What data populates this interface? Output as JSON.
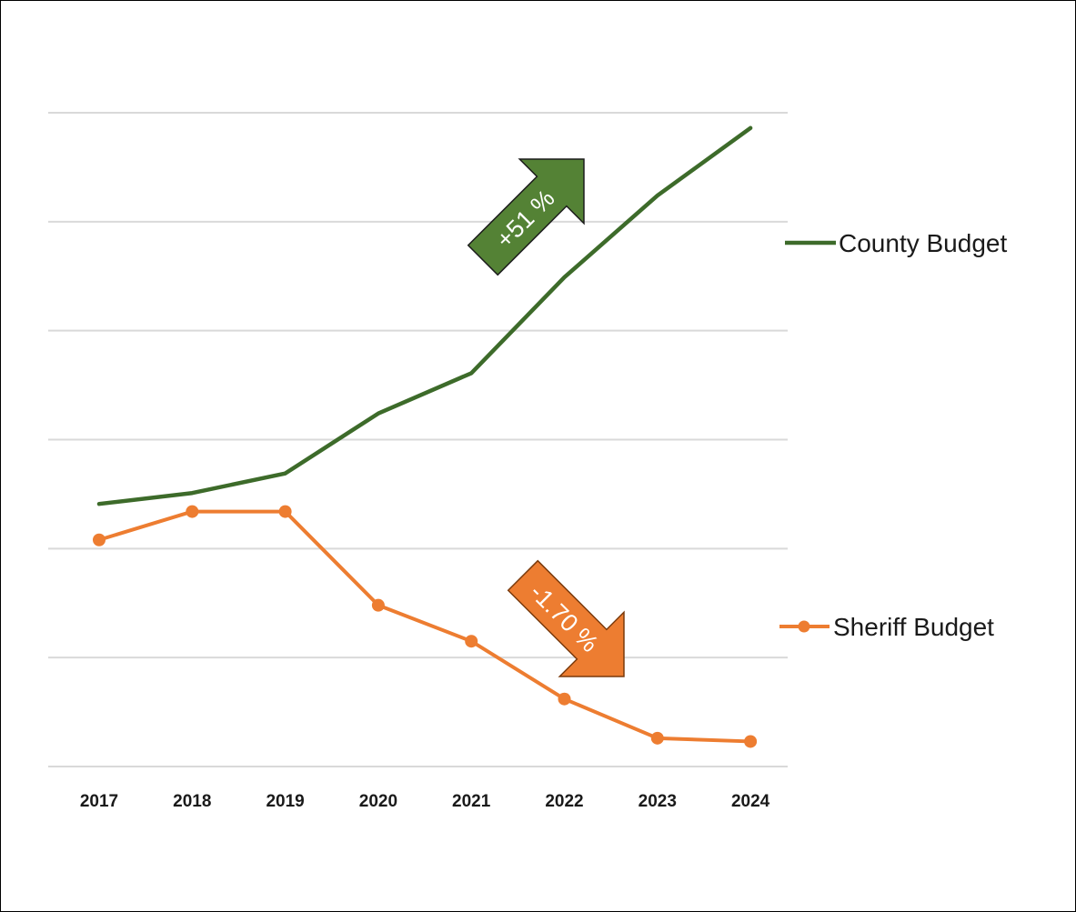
{
  "chart_data": {
    "type": "line",
    "title": "",
    "xlabel": "",
    "ylabel": "",
    "categories": [
      "2017",
      "2018",
      "2019",
      "2020",
      "2021",
      "2022",
      "2023",
      "2024"
    ],
    "ylim": [
      0,
      60
    ],
    "grid": true,
    "y_axis_labels_shown": false,
    "legend_placement": "right",
    "series": [
      {
        "name": "County Budget",
        "color": "#3d6b2a",
        "markers": false,
        "values": [
          24.1,
          25.1,
          26.9,
          32.4,
          36.1,
          44.9,
          52.4,
          58.6
        ]
      },
      {
        "name": "Sheriff Budget",
        "color": "#ed7d31",
        "markers": true,
        "values": [
          20.8,
          23.4,
          23.4,
          14.8,
          11.5,
          6.2,
          2.6,
          2.3
        ]
      }
    ],
    "annotations": [
      {
        "text": "+51 %",
        "color": "#548235",
        "direction": "up",
        "series": "County Budget"
      },
      {
        "text": "-1.70 %",
        "color": "#ed7d31",
        "direction": "down",
        "series": "Sheriff Budget"
      }
    ]
  }
}
